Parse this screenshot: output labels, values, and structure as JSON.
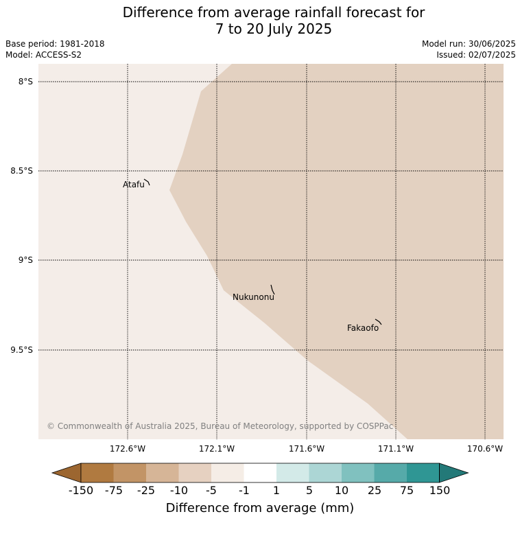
{
  "header": {
    "title_line1": "Difference from average rainfall forecast for",
    "title_line2": "7 to 20 July 2025",
    "base_period": "Base period: 1981-2018",
    "model": "Model: ACCESS-S2",
    "model_run": "Model run: 30/06/2025",
    "issued": "Issued: 02/07/2025"
  },
  "map": {
    "lat_labels": [
      "8°S",
      "8.5°S",
      "9°S",
      "9.5°S"
    ],
    "lon_labels": [
      "172.6°W",
      "172.1°W",
      "171.6°W",
      "171.1°W",
      "170.6°W"
    ],
    "places": [
      "Atafu",
      "Nukunonu",
      "Fakaofo"
    ],
    "credit": "© Commonwealth of Australia 2025, Bureau of Meteorology, supported by COSPPac",
    "colors": {
      "region_light": "#f4ede8",
      "region_tan": "#e3d1c1"
    }
  },
  "colorbar": {
    "label": "Difference from average (mm)",
    "ticks": [
      "-150",
      "-75",
      "-25",
      "-10",
      "-5",
      "-1",
      "1",
      "5",
      "10",
      "25",
      "75",
      "150"
    ],
    "colors": [
      "#9c6630",
      "#b07a40",
      "#c29466",
      "#d6b597",
      "#e6d1c1",
      "#f5ede6",
      "#ffffff",
      "#d3eae8",
      "#acd6d5",
      "#80c1bf",
      "#56aaa9",
      "#2f9694",
      "#237978"
    ]
  }
}
